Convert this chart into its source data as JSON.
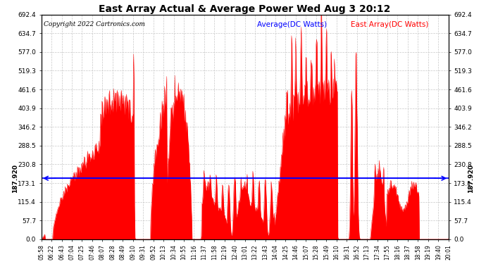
{
  "title": "East Array Actual & Average Power Wed Aug 3 20:12",
  "copyright": "Copyright 2022 Cartronics.com",
  "legend_avg": "Average(DC Watts)",
  "legend_east": "East Array(DC Watts)",
  "avg_value": 187.92,
  "y_max": 692.4,
  "background_color": "#ffffff",
  "fill_color": "#ff0000",
  "avg_line_color": "#0000ff",
  "grid_color": "#c8c8c8",
  "title_color": "#000000",
  "x_labels": [
    "05:58",
    "06:22",
    "06:43",
    "07:04",
    "07:25",
    "07:46",
    "08:07",
    "08:28",
    "08:49",
    "09:10",
    "09:31",
    "09:52",
    "10:13",
    "10:34",
    "10:55",
    "11:16",
    "11:37",
    "11:58",
    "12:19",
    "12:40",
    "13:01",
    "13:22",
    "13:43",
    "14:04",
    "14:25",
    "14:46",
    "15:07",
    "15:28",
    "15:49",
    "16:10",
    "16:31",
    "16:52",
    "17:13",
    "17:34",
    "17:55",
    "18:16",
    "18:37",
    "18:58",
    "19:19",
    "19:40",
    "20:01"
  ],
  "y_tick_vals": [
    0.0,
    57.7,
    115.4,
    173.1,
    230.8,
    288.5,
    346.2,
    403.9,
    461.6,
    519.3,
    577.0,
    634.7,
    692.4
  ]
}
